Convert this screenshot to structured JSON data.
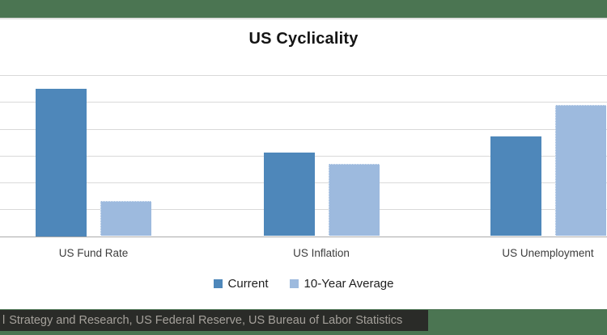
{
  "title": "US Cyclicality",
  "header_band": {
    "color": "#4b7552"
  },
  "chart_data": {
    "type": "bar",
    "title": "US Cyclicality",
    "categories": [
      "US Fund Rate",
      "US Inflation",
      "US Unemployment"
    ],
    "series": [
      {
        "name": "Current",
        "color": "#4e87ba",
        "values": [
          5.5,
          3.1,
          3.7
        ]
      },
      {
        "name": "10-Year Average",
        "color": "#9dbade",
        "values": [
          1.3,
          2.7,
          4.9
        ]
      }
    ],
    "xlabel": "",
    "ylabel": "",
    "ylim": [
      0,
      6
    ],
    "gridline_step": 1,
    "grid": true,
    "y_tick_labels_visible": false,
    "legend_position": "bottom",
    "gridline_color": "#d9d9d9",
    "axis_line_color": "#aaaaaa"
  },
  "footer": {
    "band_color": "#4b7552",
    "box_color": "#2a2b28",
    "text_color": "#a5a19b",
    "clipped_letter": "l",
    "source_text": "Strategy and Research, US Federal Reserve, US Bureau of Labor Statistics"
  }
}
